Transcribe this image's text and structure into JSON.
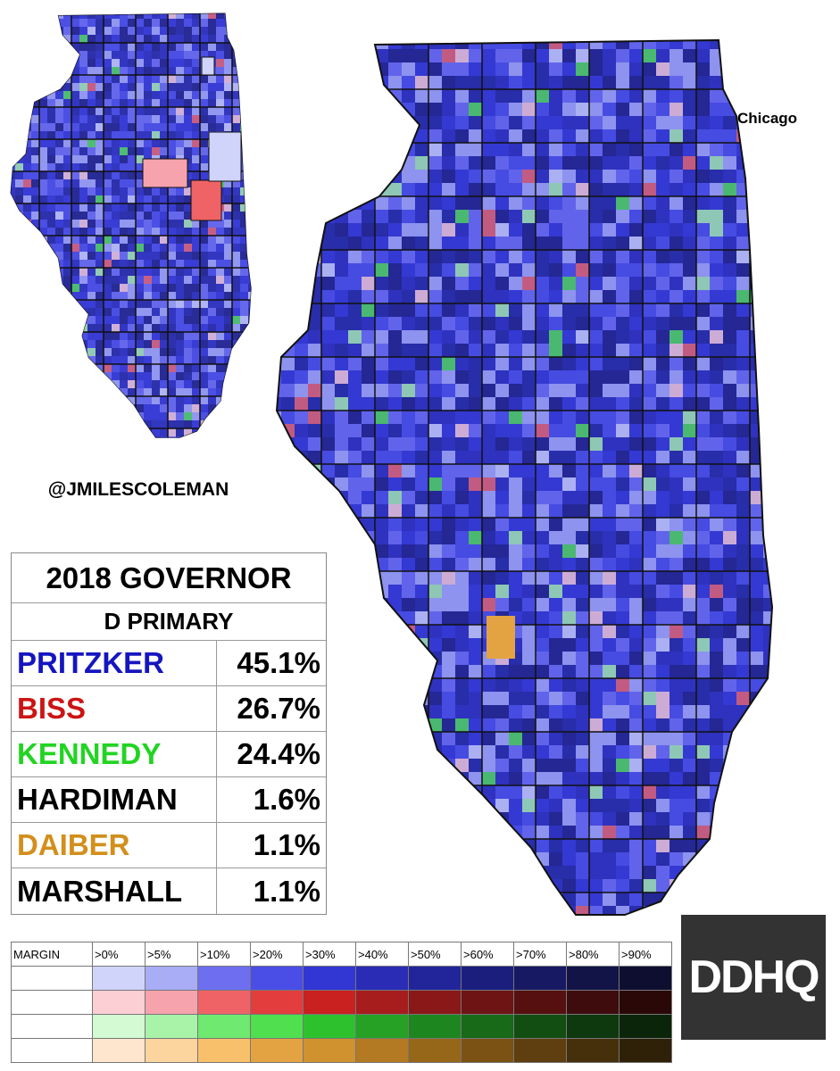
{
  "map": {
    "city_label": "Chicago",
    "credit": "@JMILESCOLEMAN"
  },
  "table": {
    "title": "2018 GOVERNOR",
    "subtitle": "D PRIMARY",
    "rows": [
      {
        "name": "PRITZKER",
        "value": "45.1%",
        "color": "#1515c0"
      },
      {
        "name": "BISS",
        "value": "26.7%",
        "color": "#cc1414"
      },
      {
        "name": "KENNEDY",
        "value": "24.4%",
        "color": "#22d422"
      },
      {
        "name": "HARDIMAN",
        "value": "1.6%",
        "color": "#000000"
      },
      {
        "name": "DAIBER",
        "value": "1.1%",
        "color": "#d28f1c"
      },
      {
        "name": "MARSHALL",
        "value": "1.1%",
        "color": "#000000"
      }
    ]
  },
  "legend": {
    "header": "MARGIN",
    "bins": [
      ">0%",
      ">5%",
      ">10%",
      ">20%",
      ">30%",
      ">40%",
      ">50%",
      ">60%",
      ">70%",
      ">80%",
      ">90%"
    ],
    "colors": [
      [
        "#d0d4fb",
        "#a8adf5",
        "#6d6ff0",
        "#4a4de6",
        "#3236d2",
        "#2a2cb5",
        "#22259a",
        "#1c1e7d",
        "#171963",
        "#121448",
        "#0e0f30"
      ],
      [
        "#fccfd4",
        "#f6a3ad",
        "#ef6366",
        "#e33d3d",
        "#c92020",
        "#a71d1d",
        "#8b1818",
        "#6e1414",
        "#561010",
        "#3e0c0c",
        "#2a0808"
      ],
      [
        "#d3fad3",
        "#a9f3a9",
        "#6fe96f",
        "#4fdf4f",
        "#2ec12e",
        "#26a126",
        "#1e861e",
        "#186918",
        "#124e12",
        "#0e380e",
        "#0a250a"
      ],
      [
        "#fde6cd",
        "#fcd49e",
        "#f9c06c",
        "#e4a342",
        "#cf922e",
        "#b47a23",
        "#966619",
        "#7b5214",
        "#5f3e0f",
        "#45300b",
        "#2e2108"
      ]
    ]
  },
  "logo": "DDHQ"
}
